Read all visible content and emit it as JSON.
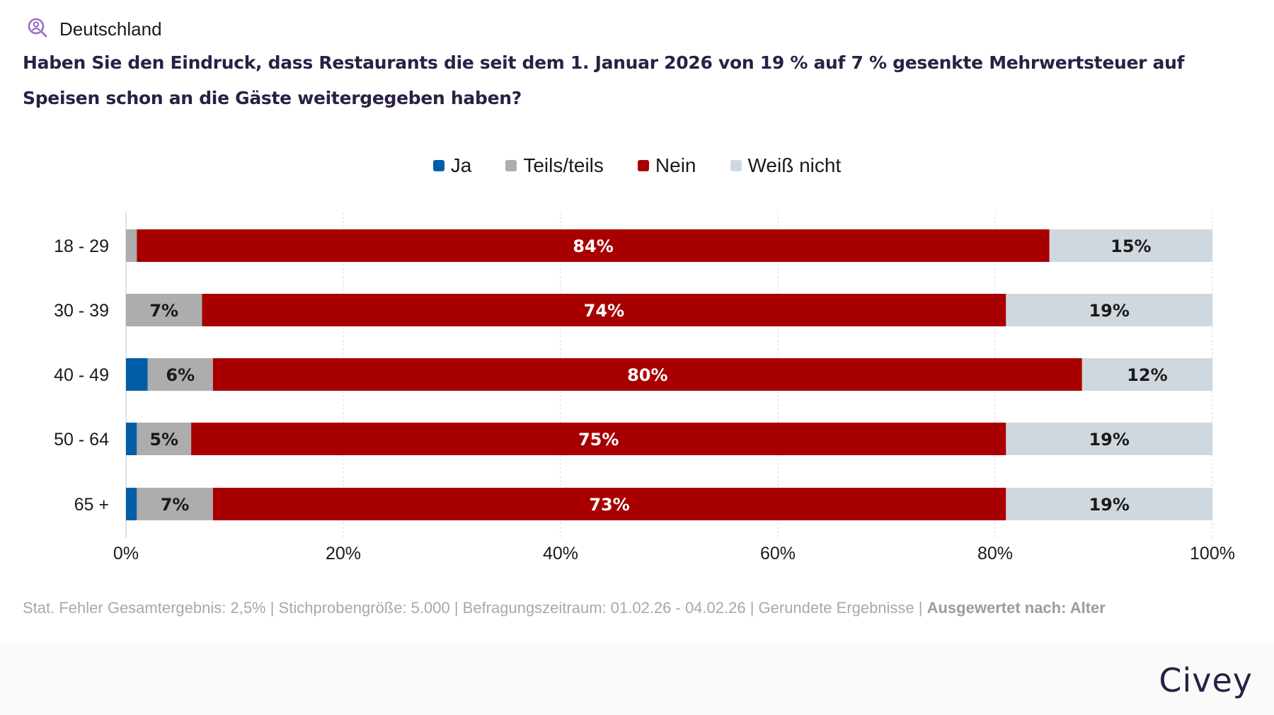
{
  "header": {
    "location_icon": "user-search-icon",
    "location": "Deutschland",
    "question": "Haben Sie den Eindruck, dass Restaurants die seit dem 1. Januar 2026 von 19 % auf 7 % gesenkte Mehrwertsteuer auf Speisen schon an die Gäste weitergegeben haben?"
  },
  "colors": {
    "Ja": "#005ea8",
    "Teils/teils": "#adadad",
    "Nein": "#a80000",
    "Weiß nicht": "#d0d8df"
  },
  "chart_data": {
    "type": "bar",
    "orientation": "horizontal",
    "stacked": true,
    "title": "Haben Sie den Eindruck, dass Restaurants die seit dem 1. Januar 2026 von 19 % auf 7 % gesenkte Mehrwertsteuer auf Speisen schon an die Gäste weitergegeben haben?",
    "categories": [
      "18 - 29",
      "30 - 39",
      "40 - 49",
      "50 - 64",
      "65 +"
    ],
    "series": [
      {
        "name": "Ja",
        "values": [
          0,
          0,
          2,
          1,
          1
        ],
        "labels": [
          "",
          "",
          "",
          "",
          ""
        ]
      },
      {
        "name": "Teils/teils",
        "values": [
          1,
          7,
          6,
          5,
          7
        ],
        "labels": [
          "",
          "7%",
          "6%",
          "5%",
          "7%"
        ]
      },
      {
        "name": "Nein",
        "values": [
          84,
          74,
          80,
          75,
          73
        ],
        "labels": [
          "84%",
          "74%",
          "80%",
          "75%",
          "73%"
        ]
      },
      {
        "name": "Weiß nicht",
        "values": [
          15,
          19,
          12,
          19,
          19
        ],
        "labels": [
          "15%",
          "19%",
          "12%",
          "19%",
          "19%"
        ]
      }
    ],
    "xlabel": "",
    "ylabel": "",
    "xlim": [
      0,
      100
    ],
    "xticks": [
      "0%",
      "20%",
      "40%",
      "60%",
      "80%",
      "100%"
    ],
    "grid": true,
    "legend": "top-center"
  },
  "footer": {
    "note": "Stat. Fehler Gesamtergebnis: 2,5% | Stichprobengröße: 5.000 | Befragungszeitraum: 01.02.26 - 04.02.26 | Gerundete Ergebnisse | ",
    "note_bold": "Ausgewertet nach: Alter",
    "brand": "Civey"
  }
}
